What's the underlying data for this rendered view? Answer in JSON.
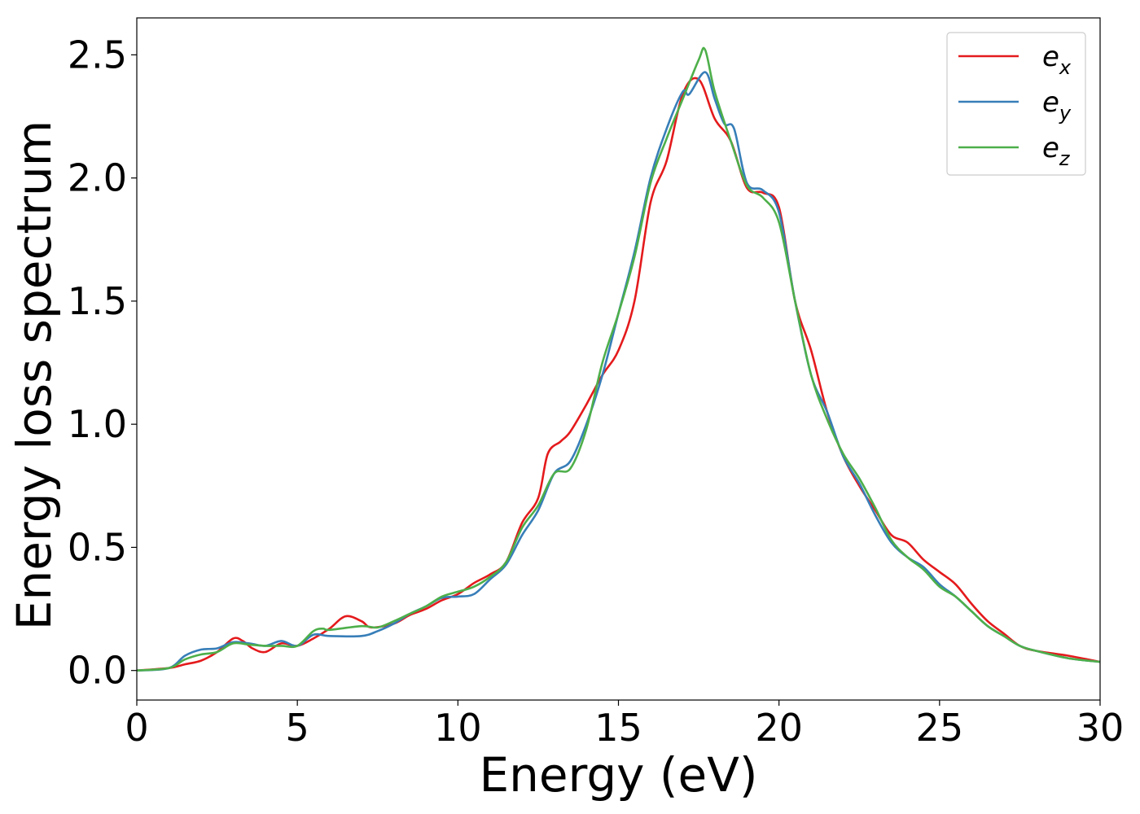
{
  "chart_data": {
    "type": "line",
    "xlabel": "Energy (eV)",
    "ylabel": "Energy loss spectrum",
    "xlim": [
      0,
      30
    ],
    "ylim": [
      -0.12,
      2.65
    ],
    "xticks": [
      0,
      5,
      10,
      15,
      20,
      25,
      30
    ],
    "xtick_labels": [
      "0",
      "5",
      "10",
      "15",
      "20",
      "25",
      "30"
    ],
    "yticks": [
      0.0,
      0.5,
      1.0,
      1.5,
      2.0,
      2.5
    ],
    "ytick_labels": [
      "0.0",
      "0.5",
      "1.0",
      "1.5",
      "2.0",
      "2.5"
    ],
    "grid": false,
    "legend_position": "top-right",
    "series": [
      {
        "name": "e_x",
        "base": "e",
        "sub": "x",
        "color": "#e41a1c",
        "points": [
          [
            0,
            0
          ],
          [
            1,
            0.01
          ],
          [
            1.5,
            0.025
          ],
          [
            2,
            0.04
          ],
          [
            2.5,
            0.075
          ],
          [
            3,
            0.13
          ],
          [
            3.3,
            0.12
          ],
          [
            3.6,
            0.09
          ],
          [
            4,
            0.075
          ],
          [
            4.5,
            0.11
          ],
          [
            5,
            0.1
          ],
          [
            5.5,
            0.13
          ],
          [
            6,
            0.17
          ],
          [
            6.5,
            0.22
          ],
          [
            7,
            0.2
          ],
          [
            7.3,
            0.175
          ],
          [
            8,
            0.19
          ],
          [
            8.5,
            0.225
          ],
          [
            9,
            0.25
          ],
          [
            9.5,
            0.285
          ],
          [
            10,
            0.31
          ],
          [
            10.5,
            0.355
          ],
          [
            11,
            0.39
          ],
          [
            11.5,
            0.44
          ],
          [
            12,
            0.6
          ],
          [
            12.5,
            0.7
          ],
          [
            12.8,
            0.88
          ],
          [
            13.2,
            0.93
          ],
          [
            13.5,
            0.97
          ],
          [
            14,
            1.08
          ],
          [
            14.5,
            1.2
          ],
          [
            15,
            1.3
          ],
          [
            15.5,
            1.5
          ],
          [
            16,
            1.9
          ],
          [
            16.5,
            2.07
          ],
          [
            17,
            2.34
          ],
          [
            17.5,
            2.4
          ],
          [
            18,
            2.24
          ],
          [
            18.5,
            2.15
          ],
          [
            19,
            1.96
          ],
          [
            19.5,
            1.94
          ],
          [
            20,
            1.88
          ],
          [
            20.5,
            1.5
          ],
          [
            21,
            1.3
          ],
          [
            21.5,
            1.05
          ],
          [
            22,
            0.87
          ],
          [
            22.5,
            0.75
          ],
          [
            23,
            0.65
          ],
          [
            23.5,
            0.55
          ],
          [
            24,
            0.52
          ],
          [
            24.5,
            0.45
          ],
          [
            25,
            0.4
          ],
          [
            25.5,
            0.35
          ],
          [
            26,
            0.27
          ],
          [
            26.5,
            0.2
          ],
          [
            27,
            0.15
          ],
          [
            27.5,
            0.1
          ],
          [
            28,
            0.08
          ],
          [
            29,
            0.06
          ],
          [
            30,
            0.035
          ]
        ]
      },
      {
        "name": "e_y",
        "base": "e",
        "sub": "y",
        "color": "#377eb8",
        "points": [
          [
            0,
            0
          ],
          [
            1,
            0.01
          ],
          [
            1.5,
            0.06
          ],
          [
            2,
            0.085
          ],
          [
            2.5,
            0.09
          ],
          [
            3,
            0.115
          ],
          [
            3.5,
            0.11
          ],
          [
            4,
            0.1
          ],
          [
            4.5,
            0.12
          ],
          [
            5,
            0.1
          ],
          [
            5.5,
            0.145
          ],
          [
            6,
            0.14
          ],
          [
            7,
            0.14
          ],
          [
            7.5,
            0.16
          ],
          [
            8,
            0.19
          ],
          [
            8.5,
            0.23
          ],
          [
            9,
            0.26
          ],
          [
            9.5,
            0.295
          ],
          [
            10,
            0.3
          ],
          [
            10.5,
            0.31
          ],
          [
            11,
            0.37
          ],
          [
            11.5,
            0.43
          ],
          [
            12,
            0.55
          ],
          [
            12.5,
            0.65
          ],
          [
            13,
            0.8
          ],
          [
            13.5,
            0.85
          ],
          [
            14,
            1.0
          ],
          [
            14.5,
            1.2
          ],
          [
            15,
            1.45
          ],
          [
            15.5,
            1.7
          ],
          [
            16,
            2.0
          ],
          [
            16.5,
            2.2
          ],
          [
            17,
            2.35
          ],
          [
            17.2,
            2.34
          ],
          [
            17.7,
            2.43
          ],
          [
            18,
            2.32
          ],
          [
            18.3,
            2.22
          ],
          [
            18.6,
            2.2
          ],
          [
            19,
            1.98
          ],
          [
            19.5,
            1.95
          ],
          [
            20,
            1.86
          ],
          [
            20.5,
            1.5
          ],
          [
            21,
            1.2
          ],
          [
            21.5,
            1.05
          ],
          [
            22,
            0.87
          ],
          [
            22.5,
            0.76
          ],
          [
            23,
            0.63
          ],
          [
            23.5,
            0.52
          ],
          [
            24,
            0.46
          ],
          [
            24.5,
            0.42
          ],
          [
            25,
            0.35
          ],
          [
            25.5,
            0.3
          ],
          [
            26,
            0.24
          ],
          [
            26.5,
            0.18
          ],
          [
            27,
            0.14
          ],
          [
            27.5,
            0.1
          ],
          [
            28,
            0.08
          ],
          [
            29,
            0.05
          ],
          [
            30,
            0.035
          ]
        ]
      },
      {
        "name": "e_z",
        "base": "e",
        "sub": "z",
        "color": "#4daf4a",
        "points": [
          [
            0,
            0
          ],
          [
            1,
            0.01
          ],
          [
            1.5,
            0.045
          ],
          [
            2,
            0.065
          ],
          [
            2.5,
            0.075
          ],
          [
            3,
            0.11
          ],
          [
            3.5,
            0.105
          ],
          [
            4,
            0.1
          ],
          [
            4.5,
            0.1
          ],
          [
            5,
            0.1
          ],
          [
            5.5,
            0.16
          ],
          [
            5.8,
            0.17
          ],
          [
            6,
            0.165
          ],
          [
            7,
            0.18
          ],
          [
            7.5,
            0.175
          ],
          [
            8,
            0.2
          ],
          [
            8.5,
            0.23
          ],
          [
            9,
            0.26
          ],
          [
            9.5,
            0.3
          ],
          [
            10,
            0.32
          ],
          [
            10.5,
            0.34
          ],
          [
            11,
            0.38
          ],
          [
            11.5,
            0.44
          ],
          [
            12,
            0.58
          ],
          [
            12.5,
            0.67
          ],
          [
            13,
            0.8
          ],
          [
            13.5,
            0.82
          ],
          [
            14,
            0.98
          ],
          [
            14.5,
            1.25
          ],
          [
            15,
            1.45
          ],
          [
            15.5,
            1.68
          ],
          [
            16,
            1.98
          ],
          [
            16.5,
            2.16
          ],
          [
            17,
            2.32
          ],
          [
            17.5,
            2.48
          ],
          [
            17.7,
            2.52
          ],
          [
            18,
            2.35
          ],
          [
            18.5,
            2.15
          ],
          [
            19,
            1.97
          ],
          [
            19.5,
            1.92
          ],
          [
            20,
            1.82
          ],
          [
            20.5,
            1.5
          ],
          [
            21,
            1.2
          ],
          [
            21.5,
            1.02
          ],
          [
            22,
            0.88
          ],
          [
            22.5,
            0.78
          ],
          [
            23,
            0.66
          ],
          [
            23.5,
            0.53
          ],
          [
            24,
            0.46
          ],
          [
            24.5,
            0.41
          ],
          [
            25,
            0.34
          ],
          [
            25.5,
            0.3
          ],
          [
            26,
            0.24
          ],
          [
            26.5,
            0.18
          ],
          [
            27,
            0.14
          ],
          [
            27.5,
            0.1
          ],
          [
            28,
            0.08
          ],
          [
            29,
            0.05
          ],
          [
            30,
            0.035
          ]
        ]
      }
    ]
  }
}
